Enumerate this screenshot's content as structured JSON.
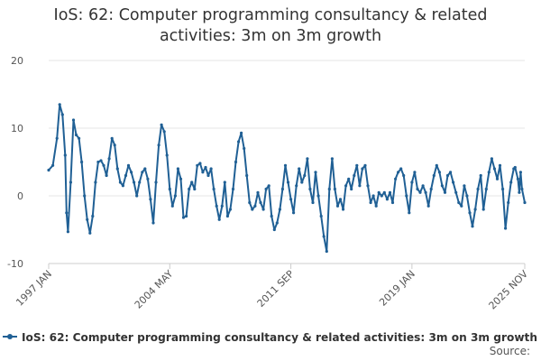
{
  "chart_data": {
    "type": "line",
    "title_lines": [
      "IoS: 62: Computer programming consultancy & related",
      "activities: 3m on 3m growth"
    ],
    "xlabel": "",
    "ylabel": "",
    "ylim": [
      -10,
      20
    ],
    "yticks": [
      -10,
      0,
      10,
      20
    ],
    "x_range": [
      "1997-01",
      "2025-11"
    ],
    "xticks": [
      {
        "label": "1997 JAN",
        "date": "1997-01"
      },
      {
        "label": "2004 MAY",
        "date": "2004-05"
      },
      {
        "label": "2011 SEP",
        "date": "2011-09"
      },
      {
        "label": "2019 JAN",
        "date": "2019-01"
      },
      {
        "label": "2025 NOV",
        "date": "2025-11"
      }
    ],
    "grid": "horizontal",
    "legend_position": "bottom",
    "colors": {
      "series": "#206095",
      "grid": "#e6e6e6",
      "axis": "#cccccc"
    },
    "source_label": "Source:",
    "series": [
      {
        "name": "IoS: 62: Computer programming consultancy & related activities: 3m on 3m growth",
        "points": [
          [
            "1997-01",
            3.8
          ],
          [
            "1997-04",
            4.5
          ],
          [
            "1997-07",
            8.5
          ],
          [
            "1997-09",
            13.5
          ],
          [
            "1997-11",
            12.0
          ],
          [
            "1998-01",
            6.0
          ],
          [
            "1998-02",
            -2.5
          ],
          [
            "1998-03",
            -5.3
          ],
          [
            "1998-05",
            2.0
          ],
          [
            "1998-07",
            11.2
          ],
          [
            "1998-09",
            9.0
          ],
          [
            "1998-11",
            8.5
          ],
          [
            "1999-01",
            5.0
          ],
          [
            "1999-03",
            0.0
          ],
          [
            "1999-05",
            -3.5
          ],
          [
            "1999-07",
            -5.5
          ],
          [
            "1999-09",
            -3.0
          ],
          [
            "1999-11",
            2.0
          ],
          [
            "2000-01",
            5.0
          ],
          [
            "2000-03",
            5.2
          ],
          [
            "2000-05",
            4.5
          ],
          [
            "2000-07",
            3.0
          ],
          [
            "2000-09",
            5.5
          ],
          [
            "2000-11",
            8.5
          ],
          [
            "2001-01",
            7.5
          ],
          [
            "2001-03",
            4.0
          ],
          [
            "2001-05",
            2.0
          ],
          [
            "2001-07",
            1.5
          ],
          [
            "2001-09",
            3.0
          ],
          [
            "2001-11",
            4.5
          ],
          [
            "2002-01",
            3.5
          ],
          [
            "2002-03",
            2.0
          ],
          [
            "2002-05",
            0.0
          ],
          [
            "2002-07",
            2.0
          ],
          [
            "2002-09",
            3.5
          ],
          [
            "2002-11",
            4.0
          ],
          [
            "2003-01",
            2.5
          ],
          [
            "2003-03",
            -0.5
          ],
          [
            "2003-05",
            -4.0
          ],
          [
            "2003-07",
            2.0
          ],
          [
            "2003-09",
            7.5
          ],
          [
            "2003-11",
            10.5
          ],
          [
            "2004-01",
            9.5
          ],
          [
            "2004-03",
            6.0
          ],
          [
            "2004-05",
            1.0
          ],
          [
            "2004-07",
            -1.5
          ],
          [
            "2004-09",
            0.0
          ],
          [
            "2004-11",
            4.0
          ],
          [
            "2005-01",
            2.5
          ],
          [
            "2005-03",
            -3.2
          ],
          [
            "2005-05",
            -3.0
          ],
          [
            "2005-07",
            1.0
          ],
          [
            "2005-09",
            2.0
          ],
          [
            "2005-11",
            1.0
          ],
          [
            "2006-01",
            4.5
          ],
          [
            "2006-03",
            4.8
          ],
          [
            "2006-05",
            3.5
          ],
          [
            "2006-07",
            4.2
          ],
          [
            "2006-09",
            3.0
          ],
          [
            "2006-11",
            4.0
          ],
          [
            "2007-01",
            1.0
          ],
          [
            "2007-03",
            -1.5
          ],
          [
            "2007-05",
            -3.5
          ],
          [
            "2007-07",
            -1.5
          ],
          [
            "2007-09",
            2.0
          ],
          [
            "2007-11",
            -3.0
          ],
          [
            "2008-01",
            -2.0
          ],
          [
            "2008-03",
            1.0
          ],
          [
            "2008-05",
            5.0
          ],
          [
            "2008-07",
            8.0
          ],
          [
            "2008-09",
            9.3
          ],
          [
            "2008-11",
            7.0
          ],
          [
            "2009-01",
            3.0
          ],
          [
            "2009-03",
            -1.0
          ],
          [
            "2009-05",
            -2.0
          ],
          [
            "2009-07",
            -1.5
          ],
          [
            "2009-09",
            0.5
          ],
          [
            "2009-11",
            -1.0
          ],
          [
            "2010-01",
            -2.0
          ],
          [
            "2010-03",
            1.0
          ],
          [
            "2010-05",
            1.5
          ],
          [
            "2010-07",
            -3.0
          ],
          [
            "2010-09",
            -5.0
          ],
          [
            "2010-11",
            -4.0
          ],
          [
            "2011-01",
            -2.0
          ],
          [
            "2011-03",
            1.0
          ],
          [
            "2011-05",
            4.5
          ],
          [
            "2011-07",
            2.0
          ],
          [
            "2011-09",
            -0.5
          ],
          [
            "2011-11",
            -2.5
          ],
          [
            "2012-01",
            1.5
          ],
          [
            "2012-03",
            4.0
          ],
          [
            "2012-05",
            2.0
          ],
          [
            "2012-07",
            3.0
          ],
          [
            "2012-09",
            5.5
          ],
          [
            "2012-11",
            1.0
          ],
          [
            "2013-01",
            -1.0
          ],
          [
            "2013-03",
            3.5
          ],
          [
            "2013-05",
            0.0
          ],
          [
            "2013-07",
            -3.0
          ],
          [
            "2013-09",
            -6.0
          ],
          [
            "2013-11",
            -8.2
          ],
          [
            "2014-01",
            1.0
          ],
          [
            "2014-03",
            5.5
          ],
          [
            "2014-05",
            1.0
          ],
          [
            "2014-07",
            -1.5
          ],
          [
            "2014-09",
            -0.5
          ],
          [
            "2014-11",
            -2.0
          ],
          [
            "2015-01",
            1.5
          ],
          [
            "2015-03",
            2.5
          ],
          [
            "2015-05",
            1.0
          ],
          [
            "2015-07",
            3.0
          ],
          [
            "2015-09",
            4.5
          ],
          [
            "2015-11",
            1.5
          ],
          [
            "2016-01",
            4.0
          ],
          [
            "2016-03",
            4.5
          ],
          [
            "2016-05",
            1.5
          ],
          [
            "2016-07",
            -1.0
          ],
          [
            "2016-09",
            0.0
          ],
          [
            "2016-11",
            -1.5
          ],
          [
            "2017-01",
            0.5
          ],
          [
            "2017-03",
            0.0
          ],
          [
            "2017-05",
            0.5
          ],
          [
            "2017-07",
            -0.5
          ],
          [
            "2017-09",
            0.5
          ],
          [
            "2017-11",
            -1.0
          ],
          [
            "2018-01",
            2.5
          ],
          [
            "2018-03",
            3.5
          ],
          [
            "2018-05",
            4.0
          ],
          [
            "2018-07",
            3.0
          ],
          [
            "2018-09",
            0.0
          ],
          [
            "2018-11",
            -2.5
          ],
          [
            "2019-01",
            2.0
          ],
          [
            "2019-03",
            3.5
          ],
          [
            "2019-05",
            1.0
          ],
          [
            "2019-07",
            0.5
          ],
          [
            "2019-09",
            1.5
          ],
          [
            "2019-11",
            0.5
          ],
          [
            "2020-01",
            -1.5
          ],
          [
            "2020-03",
            1.0
          ],
          [
            "2020-05",
            3.0
          ],
          [
            "2020-07",
            4.5
          ],
          [
            "2020-09",
            3.5
          ],
          [
            "2020-11",
            1.5
          ],
          [
            "2021-01",
            0.5
          ],
          [
            "2021-03",
            3.0
          ],
          [
            "2021-05",
            3.5
          ],
          [
            "2021-07",
            2.0
          ],
          [
            "2021-09",
            0.5
          ],
          [
            "2021-11",
            -1.0
          ],
          [
            "2022-01",
            -1.5
          ],
          [
            "2022-03",
            1.5
          ],
          [
            "2022-05",
            0.0
          ],
          [
            "2022-07",
            -2.5
          ],
          [
            "2022-09",
            -4.5
          ],
          [
            "2022-11",
            -2.0
          ],
          [
            "2023-01",
            1.0
          ],
          [
            "2023-03",
            3.0
          ],
          [
            "2023-05",
            -2.0
          ],
          [
            "2023-07",
            1.0
          ],
          [
            "2023-09",
            3.5
          ],
          [
            "2023-11",
            5.5
          ],
          [
            "2024-01",
            4.0
          ],
          [
            "2024-03",
            2.5
          ],
          [
            "2024-05",
            4.5
          ],
          [
            "2024-07",
            1.0
          ],
          [
            "2024-09",
            -4.8
          ],
          [
            "2024-11",
            -1.0
          ],
          [
            "2025-01",
            2.0
          ],
          [
            "2025-03",
            4.0
          ],
          [
            "2025-04",
            4.2
          ],
          [
            "2025-06",
            2.5
          ],
          [
            "2025-07",
            0.5
          ],
          [
            "2025-08",
            3.5
          ],
          [
            "2025-09",
            1.0
          ],
          [
            "2025-11",
            -1.0
          ]
        ]
      }
    ]
  }
}
